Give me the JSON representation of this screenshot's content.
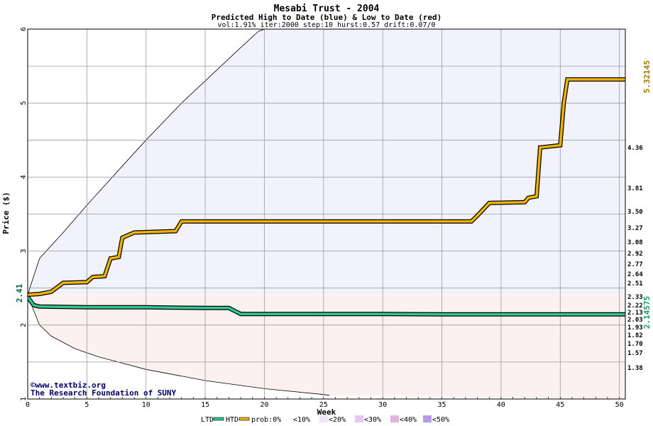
{
  "chart_data": {
    "type": "area",
    "title": "Mesabi Trust - 2004",
    "subtitle": "Predicted High to Date (blue) &  Low to Date (red)",
    "params": "vol:1.91% iter:2000 step:10 hurst:0.57 drift:0.07/0",
    "xlabel": "Week",
    "ylabel": "Price ($)",
    "xlim": [
      0,
      50.5
    ],
    "ylim": [
      1,
      6
    ],
    "x_ticks": [
      0,
      5,
      10,
      15,
      20,
      25,
      30,
      35,
      40,
      45,
      50
    ],
    "y_ticks": [
      1,
      2,
      3,
      4,
      5,
      6
    ],
    "grid": true,
    "start_price": "2.41",
    "htd_final_label": "5.32145",
    "ltd_final_label": "2.14575",
    "right_labels": [
      "4.36",
      "3.81",
      "3.50",
      "3.27",
      "3.08",
      "2.92",
      "2.77",
      "2.64",
      "2.51",
      "2.33",
      "2.22",
      "2.13",
      "2.03",
      "1.93",
      "1.82",
      "1.70",
      "1.57",
      "1.38"
    ],
    "high_bands": [
      3.81,
      3.5,
      3.27,
      3.08,
      2.92,
      2.77,
      2.64,
      2.51,
      2.41
    ],
    "high_outer": 4.36,
    "low_bands": [
      2.41,
      2.33,
      2.22,
      2.13,
      2.03,
      1.93,
      1.82,
      1.7,
      1.57
    ],
    "low_outer": 1.38,
    "envelope_upper": [
      [
        0,
        2.41
      ],
      [
        1,
        2.9
      ],
      [
        3,
        3.25
      ],
      [
        5,
        3.62
      ],
      [
        8,
        4.15
      ],
      [
        10,
        4.5
      ],
      [
        13,
        5.0
      ],
      [
        15,
        5.3
      ],
      [
        18,
        5.75
      ],
      [
        19.5,
        5.97
      ],
      [
        20,
        6.0
      ]
    ],
    "envelope_lower": [
      [
        0,
        2.41
      ],
      [
        0.5,
        2.2
      ],
      [
        1,
        2.0
      ],
      [
        2,
        1.85
      ],
      [
        4,
        1.68
      ],
      [
        6,
        1.57
      ],
      [
        10,
        1.4
      ],
      [
        15,
        1.25
      ],
      [
        20,
        1.14
      ],
      [
        25,
        1.06
      ],
      [
        25.5,
        1.05
      ]
    ],
    "htd_series": [
      [
        0,
        2.41
      ],
      [
        1,
        2.42
      ],
      [
        2,
        2.45
      ],
      [
        3,
        2.57
      ],
      [
        5,
        2.58
      ],
      [
        5.5,
        2.65
      ],
      [
        6.5,
        2.66
      ],
      [
        7,
        2.9
      ],
      [
        7.7,
        2.92
      ],
      [
        7.9,
        3.1
      ],
      [
        8,
        3.18
      ],
      [
        9,
        3.25
      ],
      [
        12.5,
        3.27
      ],
      [
        13,
        3.4
      ],
      [
        37.5,
        3.4
      ],
      [
        38,
        3.48
      ],
      [
        39,
        3.65
      ],
      [
        42,
        3.66
      ],
      [
        42.3,
        3.72
      ],
      [
        43,
        3.74
      ],
      [
        43.3,
        4.4
      ],
      [
        45,
        4.43
      ],
      [
        45.3,
        5.0
      ],
      [
        45.6,
        5.32
      ],
      [
        50.5,
        5.32
      ]
    ],
    "ltd_series": [
      [
        0,
        2.38
      ],
      [
        0.5,
        2.27
      ],
      [
        1,
        2.25
      ],
      [
        5,
        2.24
      ],
      [
        10,
        2.24
      ],
      [
        15,
        2.23
      ],
      [
        17,
        2.23
      ],
      [
        17.5,
        2.19
      ],
      [
        18,
        2.15
      ],
      [
        30,
        2.15
      ],
      [
        35,
        2.145
      ],
      [
        50.5,
        2.145
      ]
    ],
    "colors": {
      "htd": "#f0b400",
      "ltd": "#30c890",
      "envelope_high_fill": "#f2f2fc",
      "envelope_low_fill": "#fdf0f0",
      "axis_text": "#000000",
      "htd_label": "#a07800",
      "ltd_label": "#1a9a70",
      "footer_text": "#000066"
    }
  },
  "legend": {
    "ltd": "LTD",
    "htd": "HTD",
    "prob": "prob:0%",
    "items": [
      "<10%",
      "<20%",
      "<30%",
      "<40%",
      "<50%"
    ],
    "swatches": [
      "#ffffff",
      "#f4e4f8",
      "#e8c8f0",
      "#dcb8e0",
      "#b898e8"
    ]
  },
  "footer": {
    "site": "©www.textbiz.org",
    "org": "The Research Foundation of SUNY"
  }
}
